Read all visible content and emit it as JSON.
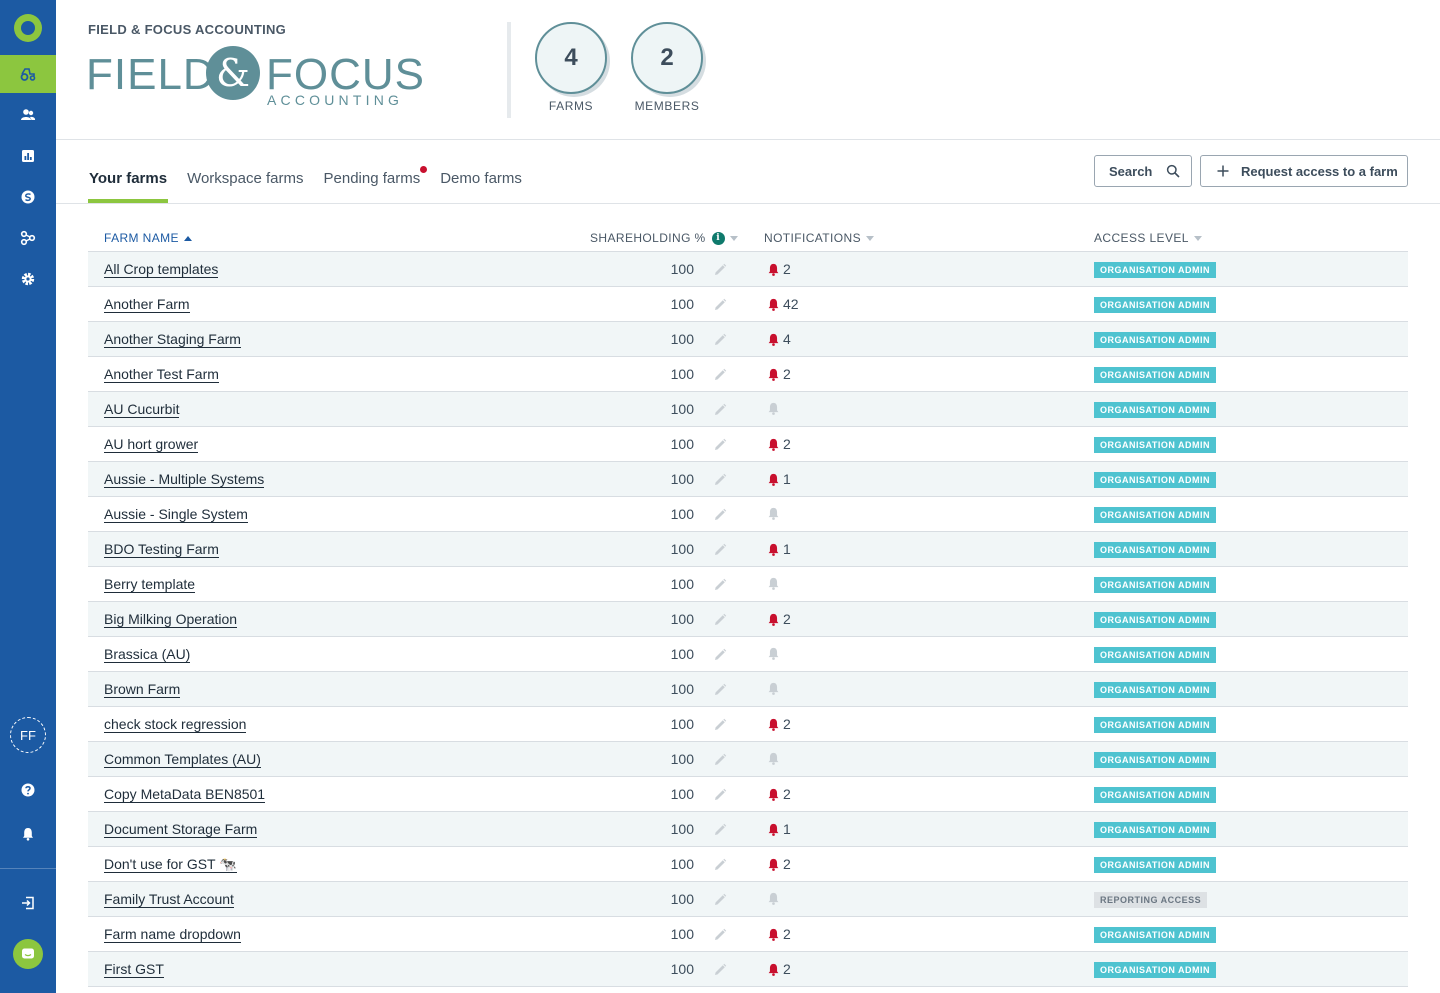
{
  "sidebar": {
    "items": [
      {
        "icon": "tractor-icon",
        "active": true
      },
      {
        "icon": "members-icon",
        "active": false
      },
      {
        "icon": "report-chart-icon",
        "active": false
      },
      {
        "icon": "currency-icon",
        "active": false
      },
      {
        "icon": "network-icon",
        "active": false
      },
      {
        "icon": "gear-icon",
        "active": false
      }
    ],
    "avatar_initials": "FF",
    "bottom_icons": [
      "help-icon",
      "bell-icon",
      "logout-icon",
      "chat-icon"
    ],
    "colors": {
      "background": "#1c5aa3",
      "accent": "#8cc63f"
    }
  },
  "header": {
    "org_name": "FIELD & FOCUS ACCOUNTING",
    "logo": {
      "left_word": "FIELD",
      "ampersand": "&",
      "right_word": "FOCUS",
      "subtitle": "ACCOUNTING"
    },
    "stats": [
      {
        "value": "4",
        "label": "FARMS"
      },
      {
        "value": "2",
        "label": "MEMBERS"
      }
    ]
  },
  "tabs": [
    {
      "label": "Your farms",
      "active": true,
      "dot": false
    },
    {
      "label": "Workspace farms",
      "active": false,
      "dot": false
    },
    {
      "label": "Pending farms",
      "active": false,
      "dot": true
    },
    {
      "label": "Demo farms",
      "active": false,
      "dot": false
    }
  ],
  "actions": {
    "search_label": "Search",
    "request_label": "Request access to a farm"
  },
  "table": {
    "columns": {
      "name": "FARM NAME",
      "shareholding": "SHAREHOLDING %",
      "notifications": "NOTIFICATIONS",
      "access": "ACCESS LEVEL"
    },
    "rows": [
      {
        "name": "All Crop templates",
        "share": "100",
        "notif": "2",
        "access": "ORGANISATION ADMIN"
      },
      {
        "name": "Another Farm",
        "share": "100",
        "notif": "42",
        "access": "ORGANISATION ADMIN"
      },
      {
        "name": "Another Staging Farm",
        "share": "100",
        "notif": "4",
        "access": "ORGANISATION ADMIN"
      },
      {
        "name": "Another Test Farm",
        "share": "100",
        "notif": "2",
        "access": "ORGANISATION ADMIN"
      },
      {
        "name": "AU Cucurbit",
        "share": "100",
        "notif": "",
        "access": "ORGANISATION ADMIN"
      },
      {
        "name": "AU hort grower",
        "share": "100",
        "notif": "2",
        "access": "ORGANISATION ADMIN"
      },
      {
        "name": "Aussie - Multiple Systems",
        "share": "100",
        "notif": "1",
        "access": "ORGANISATION ADMIN"
      },
      {
        "name": "Aussie - Single System",
        "share": "100",
        "notif": "",
        "access": "ORGANISATION ADMIN"
      },
      {
        "name": "BDO Testing Farm",
        "share": "100",
        "notif": "1",
        "access": "ORGANISATION ADMIN"
      },
      {
        "name": "Berry template",
        "share": "100",
        "notif": "",
        "access": "ORGANISATION ADMIN"
      },
      {
        "name": "Big Milking Operation",
        "share": "100",
        "notif": "2",
        "access": "ORGANISATION ADMIN"
      },
      {
        "name": "Brassica (AU)",
        "share": "100",
        "notif": "",
        "access": "ORGANISATION ADMIN"
      },
      {
        "name": "Brown Farm",
        "share": "100",
        "notif": "",
        "access": "ORGANISATION ADMIN"
      },
      {
        "name": "check stock regression",
        "share": "100",
        "notif": "2",
        "access": "ORGANISATION ADMIN"
      },
      {
        "name": "Common Templates (AU)",
        "share": "100",
        "notif": "",
        "access": "ORGANISATION ADMIN"
      },
      {
        "name": "Copy MetaData BEN8501",
        "share": "100",
        "notif": "2",
        "access": "ORGANISATION ADMIN"
      },
      {
        "name": "Document Storage Farm",
        "share": "100",
        "notif": "1",
        "access": "ORGANISATION ADMIN"
      },
      {
        "name": "Don't use for GST 🐄",
        "share": "100",
        "notif": "2",
        "access": "ORGANISATION ADMIN"
      },
      {
        "name": "Family Trust Account",
        "share": "100",
        "notif": "",
        "access": "REPORTING ACCESS"
      },
      {
        "name": "Farm name dropdown",
        "share": "100",
        "notif": "2",
        "access": "ORGANISATION ADMIN"
      },
      {
        "name": "First GST",
        "share": "100",
        "notif": "2",
        "access": "ORGANISATION ADMIN"
      }
    ]
  },
  "colors": {
    "badge_admin": "#4ec3d0",
    "badge_reporting": "#dde1e4",
    "bell_active": "#c8102e",
    "bell_inactive": "#c9cfd4"
  }
}
